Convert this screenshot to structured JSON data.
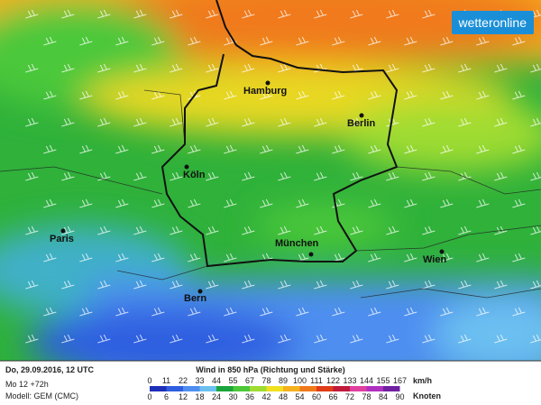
{
  "logo": "wetteronline",
  "cities": [
    "Hamburg",
    "Berlin",
    "Köln",
    "Paris",
    "München",
    "Wien",
    "Bern"
  ],
  "footer": {
    "date": "Do, 29.09.2016, 12 UTC",
    "run": "Mo 12 +72h",
    "model": "Modell: GEM (CMC)",
    "title": "Wind in 850 hPa (Richtung und Stärke)",
    "kmh_unit": "km/h",
    "knots_unit": "Knoten",
    "kmh": [
      0,
      11,
      22,
      33,
      44,
      55,
      67,
      78,
      89,
      100,
      111,
      122,
      133,
      144,
      155,
      167
    ],
    "knots": [
      0,
      6,
      12,
      18,
      24,
      30,
      36,
      42,
      48,
      54,
      60,
      66,
      72,
      78,
      84,
      90
    ],
    "colors": [
      "#1e2fb8",
      "#2f5ee0",
      "#4e8ef0",
      "#6cc0f0",
      "#1aa53c",
      "#4cc83a",
      "#9fdc32",
      "#f0e020",
      "#f5b21e",
      "#f07a1a",
      "#e03c18",
      "#c01a3a",
      "#e040a0",
      "#b030c0",
      "#7020a0"
    ]
  }
}
